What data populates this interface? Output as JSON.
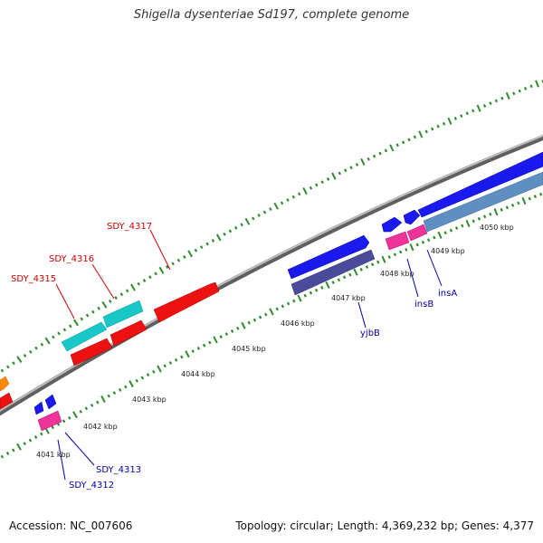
{
  "title": "Shigella dysenteriae Sd197, complete genome",
  "footer": {
    "accession": "Accession: NC_007606",
    "stats": "Topology: circular; Length: 4,369,232 bp; Genes: 4,377"
  },
  "colors": {
    "backbone": "#8a8a8a",
    "tick": "#2e8b2e",
    "red": "#ee1111",
    "cyan": "#22cccc",
    "blue": "#1111ee",
    "navy": "#4a4a99",
    "pink": "#ee3399",
    "steel": "#5588bb",
    "orange": "#ff8800",
    "label_red": "#cc0000",
    "label_blue": "#0000aa"
  },
  "kbp_labels": [
    "4041 kbp",
    "4042 kbp",
    "4043 kbp",
    "4044 kbp",
    "4045 kbp",
    "4046 kbp",
    "4047 kbp",
    "4048 kbp",
    "4049 kbp",
    "4050 kbp"
  ],
  "gene_labels": {
    "sdy_4317": "SDY_4317",
    "sdy_4316": "SDY_4316",
    "sdy_4315": "SDY_4315",
    "sdy_4313": "SDY_4313",
    "sdy_4312": "SDY_4312",
    "yjbb": "yjbB",
    "insb": "insB",
    "insa": "insA"
  }
}
